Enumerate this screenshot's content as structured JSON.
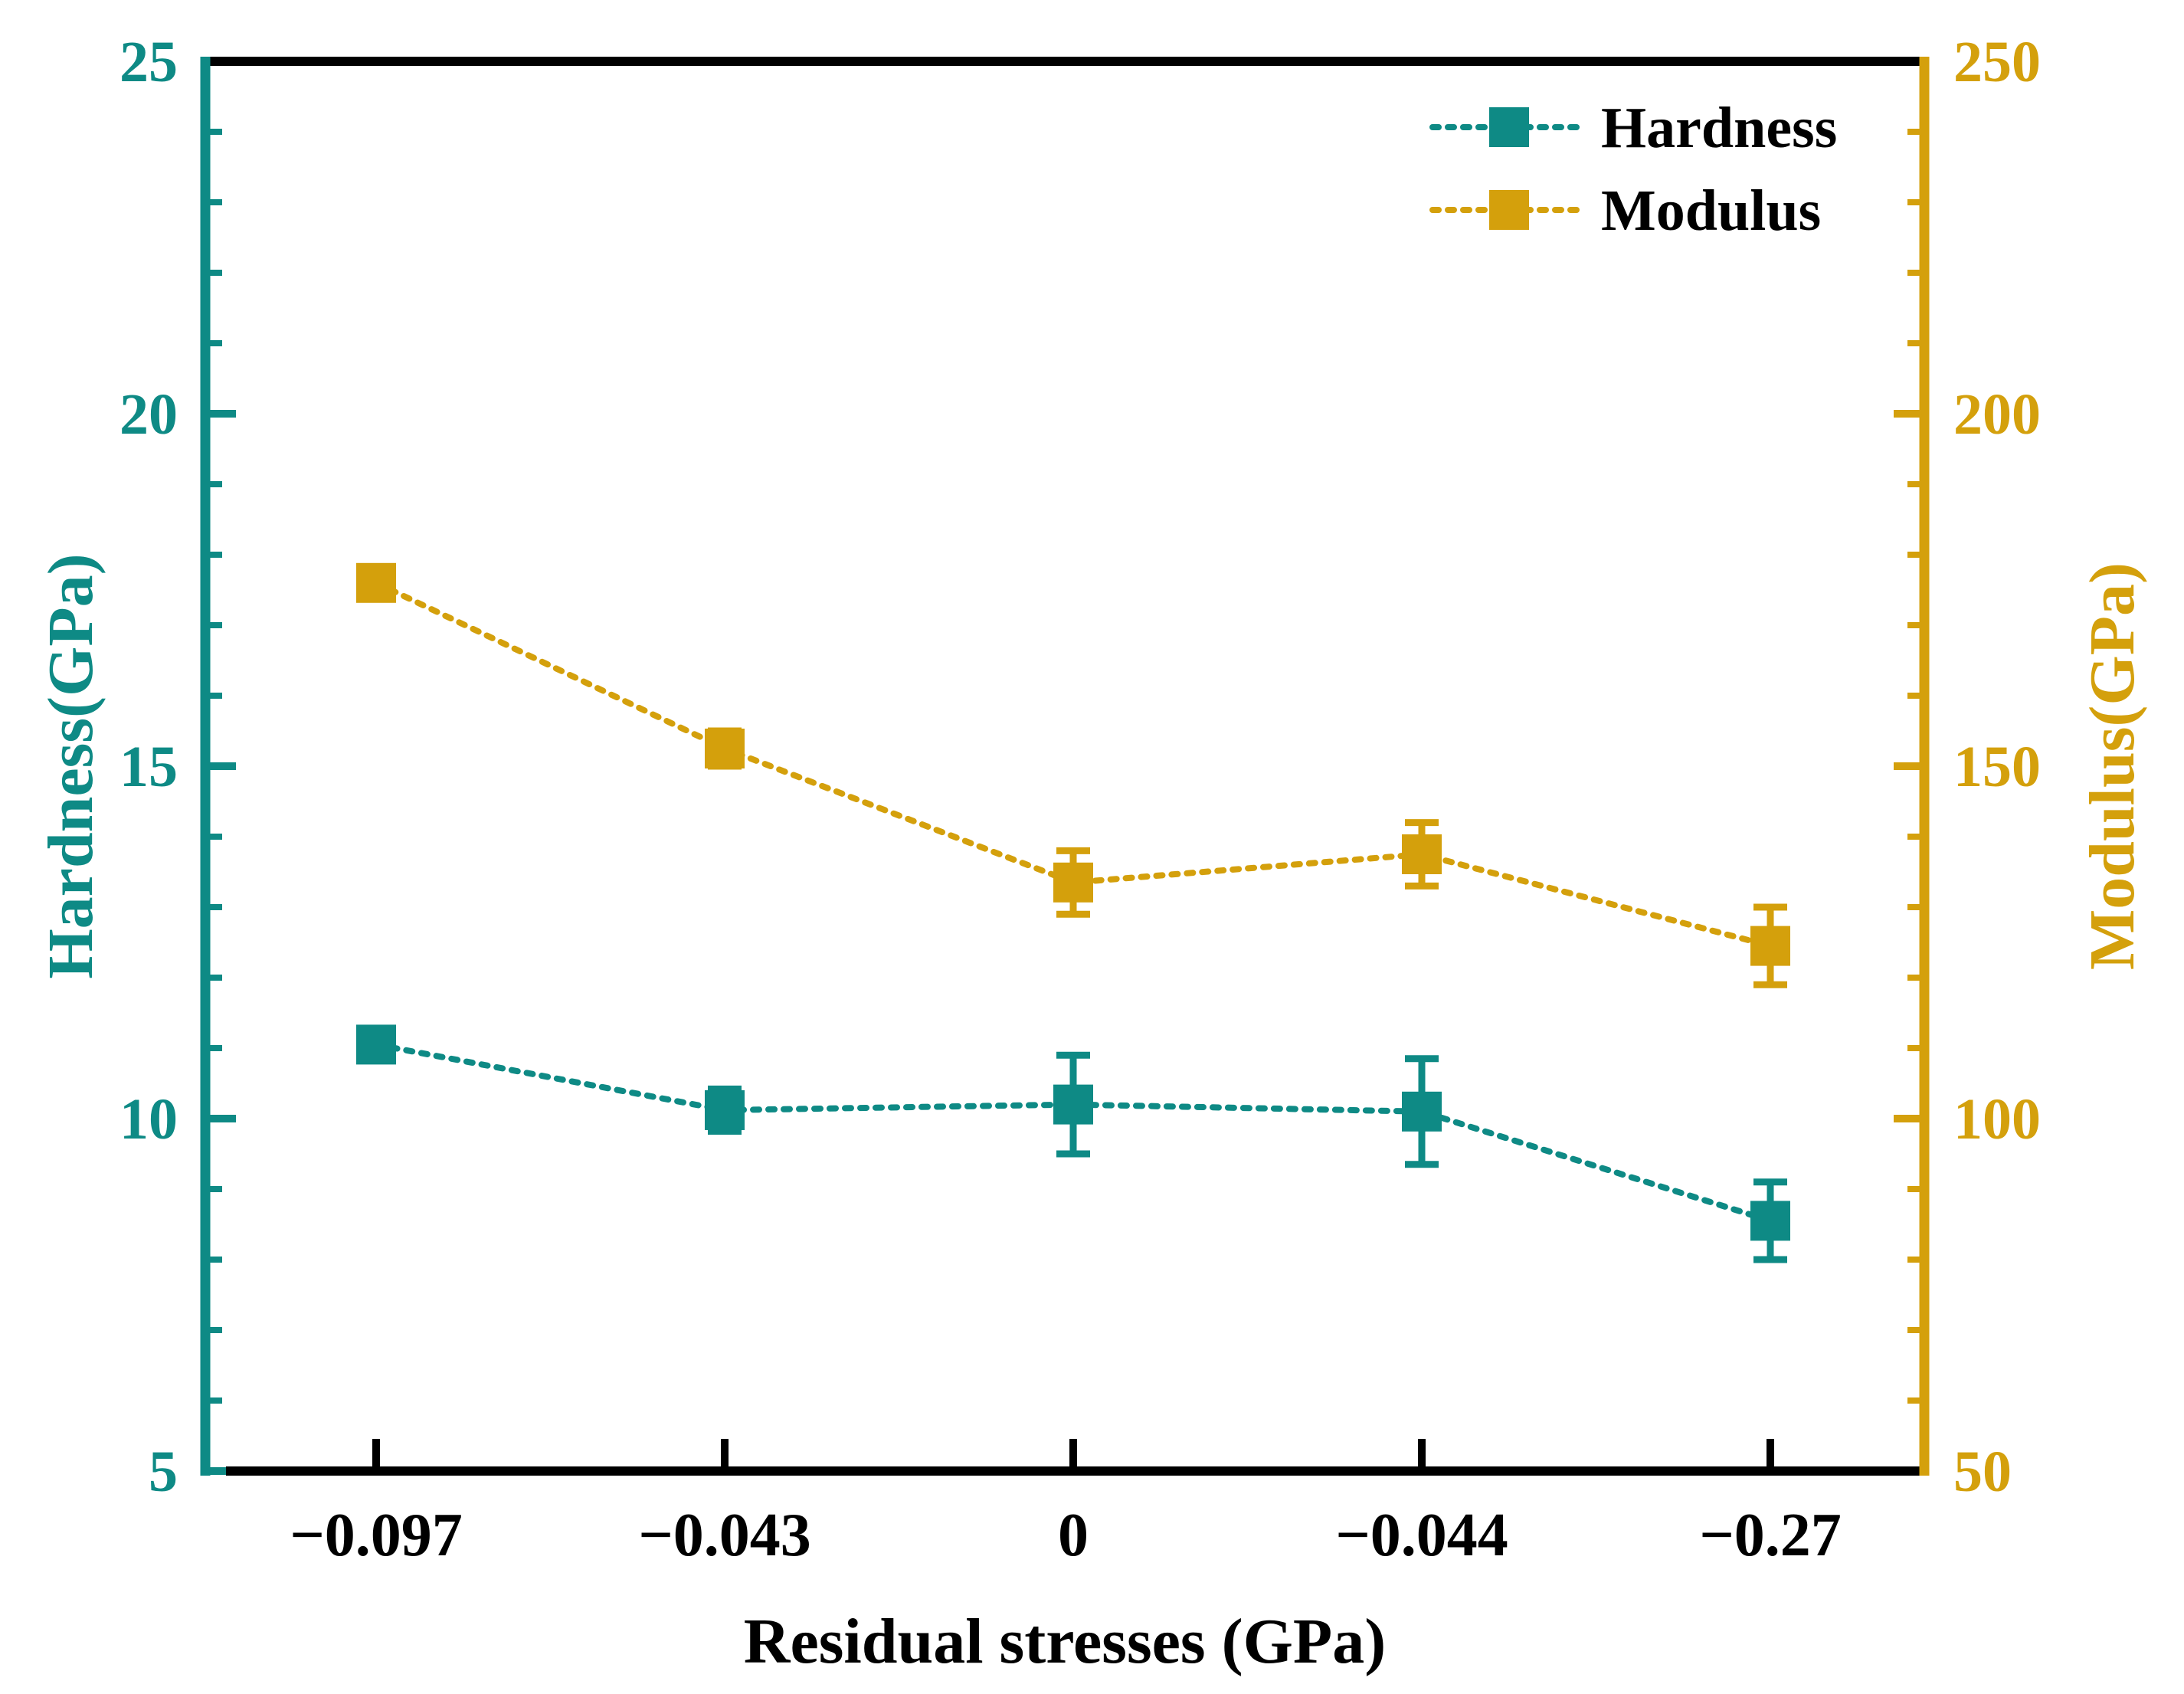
{
  "colors": {
    "hardness": "#0e8a85",
    "modulus": "#d4a00c",
    "frame": "#000000"
  },
  "chart_data": {
    "type": "line",
    "xlabel": "Residual stresses (GPa)",
    "categories": [
      "−0.097",
      "−0.043",
      "0",
      "−0.044",
      "−0.27"
    ],
    "y_left": {
      "label": "Hardness(GPa)",
      "range": [
        5,
        25
      ],
      "major_ticks": [
        5,
        10,
        15,
        20,
        25
      ],
      "tick_labels": [
        "5",
        "10",
        "15",
        "20",
        "25"
      ],
      "minor_step": 1
    },
    "y_right": {
      "label": "Modulus(GPa)",
      "range": [
        50,
        250
      ],
      "major_ticks": [
        50,
        100,
        150,
        200,
        250
      ],
      "tick_labels": [
        "50",
        "100",
        "150",
        "200",
        "250"
      ],
      "minor_step": 10
    },
    "series": [
      {
        "name": "Hardness",
        "axis": "left",
        "values": [
          11.05,
          10.12,
          10.2,
          10.1,
          8.55
        ],
        "errors": [
          0.2,
          0.3,
          0.7,
          0.75,
          0.55
        ]
      },
      {
        "name": "Modulus",
        "axis": "right",
        "values": [
          176,
          152.5,
          133.5,
          137.5,
          124.5
        ],
        "errors": [
          1.5,
          2.5,
          4.5,
          4.5,
          5.5
        ]
      }
    ],
    "legend": {
      "placement": "top-right",
      "entries": [
        "Hardness",
        "Modulus"
      ]
    }
  }
}
